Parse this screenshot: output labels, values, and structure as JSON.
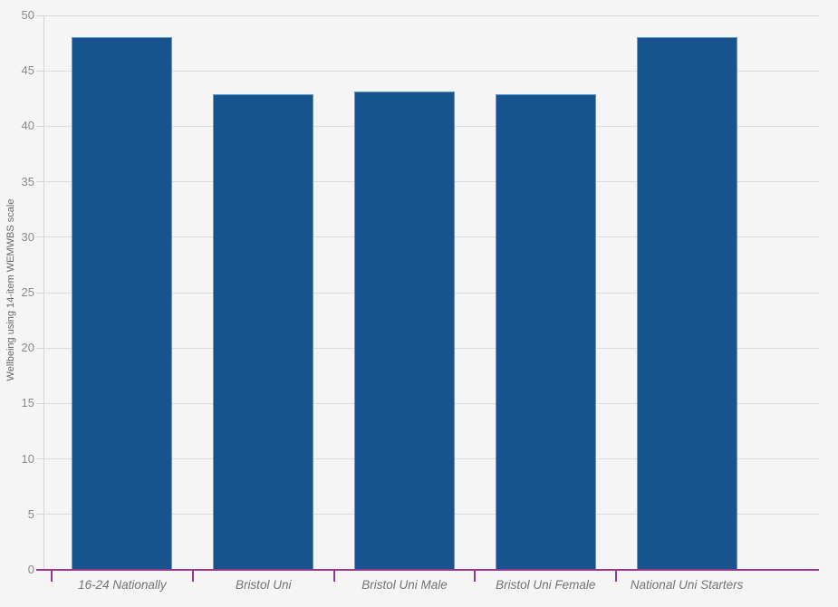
{
  "chart_data": {
    "type": "bar",
    "title": "",
    "xlabel": "",
    "ylabel": "Wellbeing using 14-item WEMWBS scale",
    "categories": [
      "16-24 Nationally",
      "Bristol Uni",
      "Bristol Uni Male",
      "Bristol Uni Female",
      "National Uni Starters"
    ],
    "values": [
      48,
      42.9,
      43.1,
      42.9,
      48
    ],
    "ylim": [
      0,
      50
    ],
    "yticks": [
      0,
      5,
      10,
      15,
      20,
      25,
      30,
      35,
      40,
      45,
      50
    ],
    "grid": true,
    "legend": false
  },
  "colors": {
    "background": "#f5f5f5",
    "bar_fill": "#17548f",
    "bar_border": "#5a9bd4",
    "axis_line": "#933a90",
    "grid_line": "#dcdcdc",
    "y_axis_line": "#d4d4d4",
    "tick_label": "#8a8a8a",
    "category_label": "#737373",
    "axis_title": "#666666"
  }
}
